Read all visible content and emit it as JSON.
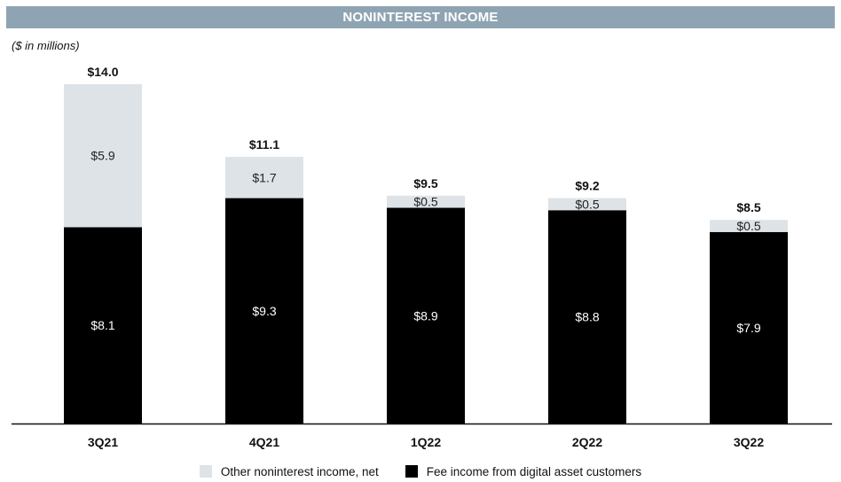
{
  "header": {
    "title": "NONINTEREST INCOME",
    "units": "($ in millions)"
  },
  "colors": {
    "banner": "#8fa4b2",
    "other": "#dde3e7",
    "fee": "#000000",
    "axis": "#111111"
  },
  "chart_data": {
    "type": "bar",
    "stacked": true,
    "title": "NONINTEREST INCOME",
    "ylabel": "($ in millions)",
    "ylim": [
      0,
      14.0
    ],
    "grid": false,
    "legend_position": "bottom",
    "categories": [
      "3Q21",
      "4Q21",
      "1Q22",
      "2Q22",
      "3Q22"
    ],
    "series": [
      {
        "name": "Fee income from digital asset customers",
        "values": [
          8.1,
          9.3,
          8.9,
          8.8,
          7.9
        ],
        "labels": [
          "$8.1",
          "$9.3",
          "$8.9",
          "$8.8",
          "$7.9"
        ],
        "color": "#000000"
      },
      {
        "name": "Other noninterest income, net",
        "values": [
          5.9,
          1.7,
          0.5,
          0.5,
          0.5
        ],
        "labels": [
          "$5.9",
          "$1.7",
          "$0.5",
          "$0.5",
          "$0.5"
        ],
        "color": "#dde3e7"
      }
    ],
    "totals": [
      14.0,
      11.1,
      9.5,
      9.2,
      8.5
    ],
    "total_labels": [
      "$14.0",
      "$11.1",
      "$9.5",
      "$9.2",
      "$8.5"
    ]
  },
  "legend": [
    {
      "label": "Other noninterest income, net",
      "color": "#dde3e7"
    },
    {
      "label": "Fee income from digital asset customers",
      "color": "#000000"
    }
  ]
}
